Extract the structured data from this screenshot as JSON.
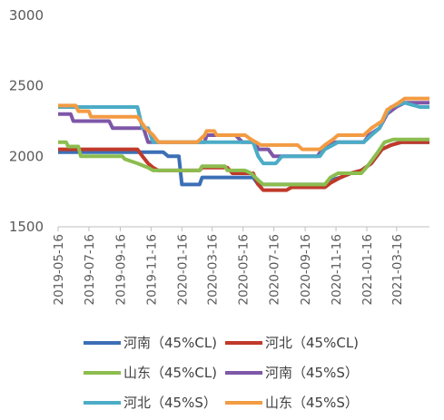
{
  "chart_data": {
    "type": "line",
    "title": "",
    "xlabel": "",
    "ylabel": "",
    "ylim": [
      1500,
      3000
    ],
    "yticks": [
      1500,
      2000,
      2500,
      3000
    ],
    "ytick_labels": [
      "1500",
      "2000",
      "2500",
      "3000"
    ],
    "xlim": [
      "2019-05-16",
      "2021-05-20"
    ],
    "xticks": [
      "2019-05-16",
      "2019-07-16",
      "2019-09-16",
      "2019-11-16",
      "2020-01-16",
      "2020-03-16",
      "2020-05-16",
      "2020-07-16",
      "2020-09-16",
      "2020-11-16",
      "2021-01-16",
      "2021-03-16"
    ],
    "grid": false,
    "legend_position": "bottom",
    "series": [
      {
        "name": "河南（45%CL)",
        "color": "#3c6fb6",
        "values": [
          [
            "2019-05-16",
            2030
          ],
          [
            "2019-12-10",
            2030
          ],
          [
            "2019-12-20",
            2000
          ],
          [
            "2020-01-10",
            2000
          ],
          [
            "2020-01-16",
            1800
          ],
          [
            "2020-02-20",
            1800
          ],
          [
            "2020-02-25",
            1850
          ],
          [
            "2020-06-05",
            1850
          ],
          [
            "2020-06-15",
            1800
          ],
          [
            "2020-10-25",
            1800
          ],
          [
            "2020-11-05",
            1830
          ],
          [
            "2020-11-25",
            1850
          ],
          [
            "2020-12-15",
            1880
          ],
          [
            "2021-01-05",
            1900
          ],
          [
            "2021-01-25",
            1950
          ],
          [
            "2021-02-15",
            2050
          ],
          [
            "2021-03-05",
            2080
          ],
          [
            "2021-03-25",
            2100
          ],
          [
            "2021-05-20",
            2100
          ]
        ]
      },
      {
        "name": "河北（45%CL)",
        "color": "#c0392b",
        "values": [
          [
            "2019-05-16",
            2050
          ],
          [
            "2019-10-20",
            2050
          ],
          [
            "2019-10-30",
            2000
          ],
          [
            "2019-11-10",
            1950
          ],
          [
            "2019-11-20",
            1920
          ],
          [
            "2019-11-30",
            1900
          ],
          [
            "2020-02-20",
            1900
          ],
          [
            "2020-02-25",
            1920
          ],
          [
            "2020-04-15",
            1920
          ],
          [
            "2020-04-25",
            1880
          ],
          [
            "2020-06-05",
            1880
          ],
          [
            "2020-06-15",
            1800
          ],
          [
            "2020-06-25",
            1760
          ],
          [
            "2020-08-10",
            1760
          ],
          [
            "2020-08-20",
            1780
          ],
          [
            "2020-10-25",
            1780
          ],
          [
            "2020-11-05",
            1810
          ],
          [
            "2020-11-25",
            1850
          ],
          [
            "2020-12-15",
            1880
          ],
          [
            "2021-01-05",
            1900
          ],
          [
            "2021-01-25",
            1950
          ],
          [
            "2021-02-15",
            2050
          ],
          [
            "2021-03-05",
            2080
          ],
          [
            "2021-03-25",
            2100
          ],
          [
            "2021-05-20",
            2100
          ]
        ]
      },
      {
        "name": "山东（45%CL)",
        "color": "#8cbd4f",
        "values": [
          [
            "2019-05-16",
            2100
          ],
          [
            "2019-06-01",
            2100
          ],
          [
            "2019-06-05",
            2070
          ],
          [
            "2019-06-25",
            2070
          ],
          [
            "2019-06-30",
            2000
          ],
          [
            "2019-09-20",
            2000
          ],
          [
            "2019-09-25",
            1980
          ],
          [
            "2019-10-20",
            1950
          ],
          [
            "2019-11-10",
            1920
          ],
          [
            "2019-11-20",
            1900
          ],
          [
            "2020-02-20",
            1900
          ],
          [
            "2020-02-25",
            1930
          ],
          [
            "2020-04-10",
            1930
          ],
          [
            "2020-04-15",
            1900
          ],
          [
            "2020-05-20",
            1900
          ],
          [
            "2020-06-01",
            1880
          ],
          [
            "2020-06-15",
            1830
          ],
          [
            "2020-06-25",
            1800
          ],
          [
            "2020-10-25",
            1800
          ],
          [
            "2020-11-05",
            1850
          ],
          [
            "2020-11-20",
            1880
          ],
          [
            "2021-01-05",
            1880
          ],
          [
            "2021-01-15",
            1920
          ],
          [
            "2021-02-05",
            2020
          ],
          [
            "2021-02-20",
            2100
          ],
          [
            "2021-03-10",
            2120
          ],
          [
            "2021-05-20",
            2120
          ]
        ]
      },
      {
        "name": "河南（45%S）",
        "color": "#7e57a8",
        "values": [
          [
            "2019-05-16",
            2300
          ],
          [
            "2019-06-10",
            2300
          ],
          [
            "2019-06-15",
            2250
          ],
          [
            "2019-08-25",
            2250
          ],
          [
            "2019-09-01",
            2200
          ],
          [
            "2019-11-01",
            2200
          ],
          [
            "2019-11-10",
            2100
          ],
          [
            "2020-03-01",
            2100
          ],
          [
            "2020-03-05",
            2150
          ],
          [
            "2020-05-01",
            2150
          ],
          [
            "2020-05-15",
            2100
          ],
          [
            "2020-06-10",
            2100
          ],
          [
            "2020-06-15",
            2050
          ],
          [
            "2020-07-05",
            2050
          ],
          [
            "2020-07-15",
            2000
          ],
          [
            "2020-10-10",
            2000
          ],
          [
            "2020-10-20",
            2050
          ],
          [
            "2020-11-01",
            2080
          ],
          [
            "2020-11-15",
            2100
          ],
          [
            "2021-01-10",
            2100
          ],
          [
            "2021-01-20",
            2150
          ],
          [
            "2021-02-10",
            2200
          ],
          [
            "2021-02-25",
            2300
          ],
          [
            "2021-03-15",
            2350
          ],
          [
            "2021-04-01",
            2380
          ],
          [
            "2021-05-20",
            2380
          ]
        ]
      },
      {
        "name": "河北（45%S）",
        "color": "#4bacc6",
        "values": [
          [
            "2019-05-16",
            2350
          ],
          [
            "2019-10-20",
            2350
          ],
          [
            "2019-10-30",
            2200
          ],
          [
            "2019-11-10",
            2200
          ],
          [
            "2019-11-20",
            2100
          ],
          [
            "2020-02-20",
            2100
          ],
          [
            "2020-02-25",
            2100
          ],
          [
            "2020-06-05",
            2100
          ],
          [
            "2020-06-15",
            2000
          ],
          [
            "2020-06-25",
            1950
          ],
          [
            "2020-07-20",
            1950
          ],
          [
            "2020-08-01",
            2000
          ],
          [
            "2020-10-15",
            2000
          ],
          [
            "2020-10-25",
            2050
          ],
          [
            "2020-11-10",
            2080
          ],
          [
            "2020-11-20",
            2100
          ],
          [
            "2021-01-10",
            2100
          ],
          [
            "2021-01-25",
            2150
          ],
          [
            "2021-02-10",
            2200
          ],
          [
            "2021-02-20",
            2280
          ],
          [
            "2021-03-05",
            2350
          ],
          [
            "2021-04-01",
            2380
          ],
          [
            "2021-05-01",
            2350
          ],
          [
            "2021-05-20",
            2350
          ]
        ]
      },
      {
        "name": "山东（45%S）",
        "color": "#f39b43",
        "values": [
          [
            "2019-05-16",
            2360
          ],
          [
            "2019-06-20",
            2360
          ],
          [
            "2019-06-25",
            2320
          ],
          [
            "2019-07-16",
            2320
          ],
          [
            "2019-07-20",
            2280
          ],
          [
            "2019-10-20",
            2280
          ],
          [
            "2019-11-05",
            2200
          ],
          [
            "2019-11-20",
            2150
          ],
          [
            "2019-12-01",
            2100
          ],
          [
            "2020-02-15",
            2100
          ],
          [
            "2020-03-01",
            2150
          ],
          [
            "2020-03-05",
            2180
          ],
          [
            "2020-03-20",
            2180
          ],
          [
            "2020-03-25",
            2150
          ],
          [
            "2020-05-20",
            2150
          ],
          [
            "2020-06-01",
            2120
          ],
          [
            "2020-06-20",
            2080
          ],
          [
            "2020-09-01",
            2080
          ],
          [
            "2020-09-10",
            2050
          ],
          [
            "2020-10-15",
            2050
          ],
          [
            "2020-10-25",
            2080
          ],
          [
            "2020-11-10",
            2120
          ],
          [
            "2020-11-20",
            2150
          ],
          [
            "2021-01-10",
            2150
          ],
          [
            "2021-01-25",
            2200
          ],
          [
            "2021-02-15",
            2250
          ],
          [
            "2021-02-25",
            2330
          ],
          [
            "2021-03-20",
            2380
          ],
          [
            "2021-04-01",
            2410
          ],
          [
            "2021-05-20",
            2410
          ]
        ]
      }
    ]
  }
}
